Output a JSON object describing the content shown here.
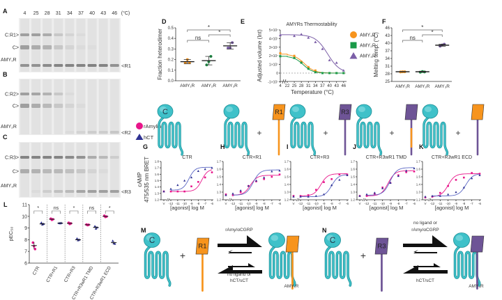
{
  "colors": {
    "rAmylin": "#e8158a",
    "hCT": "#2e3192",
    "hCT_curve": "#5a66c4",
    "AMY1R": "#f7941d",
    "AMY2R": "#1a9a48",
    "AMY3R": "#7b5ea7",
    "CTR": "#3fc1c9",
    "RAMP1": "#f7941d",
    "RAMP3": "#6e5496"
  },
  "panel_labels": {
    "A": "A",
    "B": "B",
    "C": "C",
    "D": "D",
    "E": "E",
    "F": "F",
    "G": "G",
    "H": "H",
    "I": "I",
    "J": "J",
    "K": "K",
    "L": "L",
    "M": "M",
    "N": "N"
  },
  "gel": {
    "temperatures": [
      "4",
      "25",
      "28",
      "31",
      "34",
      "37",
      "40",
      "43",
      "46"
    ],
    "temp_unit": "(°C)",
    "rows": [
      {
        "labels": {
          "complex": "C:R1>",
          "ctr": "C>",
          "receptor": "AMY₁R",
          "ramp": "<R1"
        },
        "bands": {
          "complex": [
            0.5,
            0.5,
            0.4,
            0.2,
            0.1,
            0.05,
            0,
            0,
            0
          ],
          "ctr": [
            0.5,
            0.4,
            0.35,
            0.2,
            0.1,
            0.05,
            0.03,
            0,
            0
          ],
          "ramp": [
            0.6,
            0.6,
            0.65,
            0.7,
            0.7,
            0.7,
            0.72,
            0.7,
            0.6
          ]
        }
      },
      {
        "labels": {
          "complex": "C:R2>",
          "ctr": "C>",
          "receptor": "AMY₂R",
          "ramp": "<R2"
        },
        "bands": {
          "complex": [
            0.5,
            0.45,
            0.35,
            0.2,
            0.05,
            0,
            0,
            0,
            0
          ],
          "ctr": [
            0.5,
            0.4,
            0.3,
            0.2,
            0.1,
            0.05,
            0,
            0,
            0
          ],
          "ramp": [
            0,
            0,
            0,
            0,
            0.05,
            0.1,
            0.15,
            0.15,
            0.2
          ]
        }
      },
      {
        "labels": {
          "complex": "C:R3>",
          "ctr": "C>",
          "receptor": "AMY₃R",
          "ramp": "<R3"
        },
        "bands": {
          "complex": [
            0.7,
            0.7,
            0.7,
            0.7,
            0.65,
            0.6,
            0.4,
            0.3,
            0.15
          ],
          "ctr": [
            0.4,
            0.35,
            0.3,
            0.3,
            0.25,
            0.2,
            0.1,
            0.05,
            0
          ],
          "ramp": [
            0,
            0.05,
            0.15,
            0.25,
            0.3,
            0.45,
            0.5,
            0.5,
            0.5
          ]
        }
      }
    ]
  },
  "legend_agonists": {
    "rAmylin": "rAmylin",
    "hCT": "hCT"
  },
  "cartoons": {
    "ctr_label": "C",
    "r1_label": "R1",
    "r3_label": "R3",
    "plus": "+"
  },
  "scheme_M": {
    "forward": "rAmy/αCGRP",
    "reverse_line1": "no ligand or",
    "reverse_line2": "hCT/sCT",
    "product": "AMY₁R"
  },
  "scheme_N": {
    "forward_line1": "no ligand or",
    "forward_line2": "rAmy/αCGRP",
    "reverse": "hCT/sCT",
    "product": "AMY₃R"
  },
  "chart_data": [
    {
      "id": "D",
      "type": "scatter",
      "title": "",
      "xlabel": "",
      "ylabel": "Fraction heterodimer",
      "ylim": [
        0,
        0.5
      ],
      "yticks": [
        "0.0",
        "0.1",
        "0.2",
        "0.3",
        "0.4",
        "0.5"
      ],
      "categories": [
        "AMY₁R",
        "AMY₂R",
        "AMY₃R"
      ],
      "points": [
        [
          0.17,
          0.2,
          0.17
        ],
        [
          0.15,
          0.18,
          0.23
        ],
        [
          0.31,
          0.31,
          0.36
        ]
      ],
      "mean": [
        0.18,
        0.19,
        0.33
      ],
      "sd": [
        0.02,
        0.04,
        0.03
      ],
      "comparisons": [
        {
          "a": 0,
          "b": 1,
          "label": "ns"
        },
        {
          "a": 1,
          "b": 2,
          "label": "*"
        },
        {
          "a": 0,
          "b": 2,
          "label": "*"
        }
      ]
    },
    {
      "id": "E",
      "type": "line",
      "title": "AMYRs Thermostability",
      "xlabel": "Temperature (°C)",
      "ylabel": "Adjusted volume (Int)",
      "x_ticks": [
        "4",
        "22",
        "25",
        "28",
        "31",
        "34",
        "37",
        "40",
        "43",
        "46"
      ],
      "y_ticks": [
        "5×10⁷",
        "4×10⁷",
        "3×10⁷",
        "2×10⁷",
        "1×10⁷",
        "0",
        "-1×10⁷"
      ],
      "ylim_1e7": [
        -1,
        5
      ],
      "x": [
        4,
        25,
        28,
        31,
        34,
        37,
        40,
        43,
        46
      ],
      "series": [
        {
          "name": "AMY₁R",
          "values_1e7": [
            2.3,
            2.0,
            1.3,
            0.7,
            0.3,
            0,
            0,
            0,
            0
          ],
          "fit": {
            "top": 2.2,
            "tm": 29.3,
            "slope": 2.2
          }
        },
        {
          "name": "AMY₂R",
          "values_1e7": [
            1.95,
            1.75,
            1.2,
            0.5,
            0.1,
            0,
            0,
            0,
            0
          ],
          "fit": {
            "top": 1.95,
            "tm": 28.8,
            "slope": 2.0
          }
        },
        {
          "name": "AMY₃R",
          "values_1e7": [
            4.4,
            4.3,
            4.5,
            4.1,
            3.6,
            2.8,
            1.5,
            1.2,
            0.3
          ],
          "fit": {
            "top": 4.45,
            "tm": 39.2,
            "slope": 2.6
          }
        }
      ],
      "legend": "right"
    },
    {
      "id": "F",
      "type": "scatter",
      "xlabel": "",
      "ylabel": "Melting temp. (°C)",
      "ylim": [
        25,
        46
      ],
      "yticks": [
        "25",
        "28",
        "31",
        "34",
        "37",
        "40",
        "43",
        "46"
      ],
      "categories": [
        "AMY₁R",
        "AMY₂R",
        "AMY₃R"
      ],
      "points": [
        [
          28.7,
          28.8,
          28.8
        ],
        [
          28.6,
          28.9,
          28.7
        ],
        [
          38.8,
          39.3,
          39.6
        ]
      ],
      "mean": [
        28.8,
        28.8,
        39.2
      ],
      "sd": [
        0.1,
        0.2,
        0.4
      ],
      "comparisons": [
        {
          "a": 0,
          "b": 1,
          "label": "ns"
        },
        {
          "a": 1,
          "b": 2,
          "label": "*"
        },
        {
          "a": 0,
          "b": 2,
          "label": "*"
        }
      ]
    },
    {
      "id": "G",
      "type": "line",
      "title": "CTR",
      "ylabel_line1": "cAMP",
      "ylabel_line2": "475/535 nm BRET",
      "xlabel": "[agonist] log M",
      "ylim": [
        1.2,
        1.8
      ],
      "yticks": [
        "1.2",
        "1.3",
        "1.4",
        "1.5",
        "1.6",
        "1.7",
        "1.8"
      ],
      "x_ticks": [
        "V",
        "-12",
        "-11",
        "-10",
        "-9",
        "-8",
        "-7",
        "-6"
      ],
      "series": [
        {
          "name": "rAmylin",
          "values": [
            1.33,
            1.33,
            1.33,
            1.33,
            1.41,
            1.48,
            1.55,
            1.63
          ],
          "fit": {
            "bottom": 1.33,
            "top": 1.68,
            "pec50": 7.5
          }
        },
        {
          "name": "hCT",
          "values": [
            1.33,
            1.37,
            1.43,
            1.5,
            1.55,
            1.65,
            1.68,
            1.7
          ],
          "fit": {
            "bottom": 1.35,
            "top": 1.71,
            "pec50": 9.35
          }
        }
      ]
    },
    {
      "id": "H",
      "type": "line",
      "title": "CTR+R1",
      "xlabel": "[agonist] log M",
      "ylim": [
        1.2,
        1.7
      ],
      "yticks": [
        "1.2",
        "1.3",
        "1.4",
        "1.5",
        "1.6",
        "1.7"
      ],
      "x_ticks": [
        "V",
        "-12",
        "-11",
        "-10",
        "-9",
        "-8",
        "-7",
        "-6"
      ],
      "series": [
        {
          "name": "rAmylin",
          "values": [
            1.27,
            1.26,
            1.3,
            1.38,
            1.44,
            1.47,
            1.5,
            1.53
          ],
          "fit": {
            "bottom": 1.26,
            "top": 1.52,
            "pec50": 9.75
          }
        },
        {
          "name": "hCT",
          "values": [
            1.26,
            1.28,
            1.32,
            1.38,
            1.45,
            1.49,
            1.57,
            1.58
          ],
          "fit": {
            "bottom": 1.26,
            "top": 1.59,
            "pec50": 9.4
          }
        }
      ]
    },
    {
      "id": "I",
      "type": "line",
      "title": "CTR+R3",
      "xlabel": "[agonist] log M",
      "ylim": [
        1.2,
        1.7
      ],
      "yticks": [
        "1.2",
        "1.3",
        "1.4",
        "1.5",
        "1.6",
        "1.7"
      ],
      "x_ticks": [
        "V",
        "-12",
        "-11",
        "-10",
        "-9",
        "-8",
        "-7",
        "-6"
      ],
      "series": [
        {
          "name": "rAmylin",
          "values": [
            1.25,
            1.25,
            1.26,
            1.33,
            1.43,
            1.47,
            1.53,
            1.53
          ],
          "fit": {
            "bottom": 1.25,
            "top": 1.54,
            "pec50": 9.4
          }
        },
        {
          "name": "hCT",
          "values": [
            1.24,
            1.24,
            1.24,
            1.25,
            1.27,
            1.39,
            1.46,
            1.52
          ],
          "fit": {
            "bottom": 1.24,
            "top": 1.53,
            "pec50": 8.0
          }
        }
      ]
    },
    {
      "id": "J",
      "type": "line",
      "title": "CTR+R3wR1 TMD",
      "xlabel": "[agonist] log M",
      "ylim": [
        1.2,
        1.7
      ],
      "yticks": [
        "1.2",
        "1.3",
        "1.4",
        "1.5",
        "1.6",
        "1.7"
      ],
      "x_ticks": [
        "V",
        "-12",
        "-11",
        "-10",
        "-9",
        "-8",
        "-7",
        "-6"
      ],
      "series": [
        {
          "name": "rAmylin",
          "values": [
            1.25,
            1.25,
            1.28,
            1.36,
            1.42,
            1.52,
            1.56,
            1.57
          ],
          "fit": {
            "bottom": 1.25,
            "top": 1.58,
            "pec50": 9.3
          }
        },
        {
          "name": "hCT",
          "values": [
            1.25,
            1.27,
            1.29,
            1.35,
            1.42,
            1.51,
            1.58,
            1.61
          ],
          "fit": {
            "bottom": 1.26,
            "top": 1.62,
            "pec50": 9.05
          }
        }
      ]
    },
    {
      "id": "K",
      "type": "line",
      "title": "CTR+R3wR1 ECD",
      "xlabel": "[agonist] log M",
      "ylim": [
        1.2,
        1.7
      ],
      "yticks": [
        "1.2",
        "1.3",
        "1.4",
        "1.5",
        "1.6",
        "1.7"
      ],
      "x_ticks": [
        "V",
        "-12",
        "-11",
        "-10",
        "-9",
        "-8",
        "-7",
        "-6"
      ],
      "series": [
        {
          "name": "rAmylin",
          "values": [
            1.23,
            1.24,
            1.29,
            1.38,
            1.46,
            1.49,
            1.55,
            1.54
          ],
          "fit": {
            "bottom": 1.24,
            "top": 1.54,
            "pec50": 10.0
          }
        },
        {
          "name": "hCT",
          "values": [
            1.24,
            1.25,
            1.25,
            1.27,
            1.3,
            1.36,
            1.48,
            1.52
          ],
          "fit": {
            "bottom": 1.25,
            "top": 1.54,
            "pec50": 7.75
          }
        }
      ]
    },
    {
      "id": "L",
      "type": "scatter",
      "ylabel": "pEC₅₀",
      "ylim": [
        6,
        11
      ],
      "yticks": [
        "6",
        "7",
        "8",
        "9",
        "10",
        "11"
      ],
      "categories": [
        "CTR",
        "CTR+R1",
        "CTR+R3",
        "CTR+R3wR1 TMD",
        "CTR+R3wR1 ECD"
      ],
      "series": [
        {
          "name": "rAmylin",
          "points": [
            [
              7.75,
              7.45,
              7.2
            ],
            [
              9.8,
              9.7,
              9.75
            ],
            [
              9.45,
              9.35,
              9.4
            ],
            [
              9.3,
              9.25,
              9.28
            ],
            [
              10.05,
              9.95,
              9.98
            ]
          ],
          "mean": [
            7.5,
            9.75,
            9.4,
            9.28,
            10.0
          ],
          "sd": [
            0.3,
            0.05,
            0.05,
            0.03,
            0.05
          ]
        },
        {
          "name": "hCT",
          "points": [
            [
              9.45,
              9.3,
              9.35
            ],
            [
              9.42,
              9.4,
              9.43
            ],
            [
              8.1,
              7.95,
              8.0
            ],
            [
              9.15,
              8.95,
              9.05
            ],
            [
              7.9,
              7.7,
              7.65
            ]
          ],
          "mean": [
            9.35,
            9.42,
            8.0,
            9.05,
            7.75
          ],
          "sd": [
            0.1,
            0.02,
            0.08,
            0.1,
            0.12
          ]
        }
      ],
      "comparisons": [
        "*",
        "ns",
        "*",
        "ns",
        "*"
      ]
    }
  ]
}
